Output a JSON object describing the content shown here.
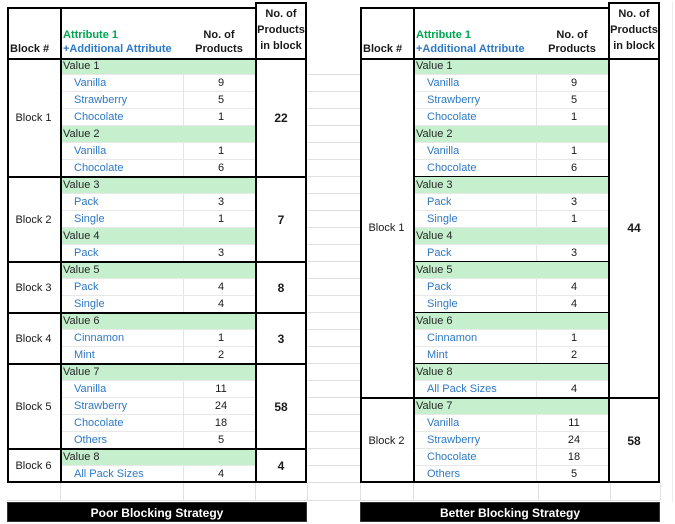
{
  "colors": {
    "green_text": "#00A550",
    "blue_text": "#2E79C4",
    "value_fill": "#C6EFCE",
    "value_text": "#262626",
    "number_text": "#1A1A1A",
    "grid_line": "#E0E0E0",
    "border": "#000000",
    "footer_bg": "#000000",
    "footer_text": "#FFFFFF"
  },
  "header": {
    "block": "Block #",
    "attribute_line1": "Attribute 1",
    "attribute_line2": "+Additional Attribute",
    "products_line1": "No. of",
    "products_line2": "Products",
    "in_block_line1": "No. of",
    "in_block_line2": "Products",
    "in_block_line3": "in block"
  },
  "titles": {
    "left_footer": "Poor Blocking Strategy",
    "right_footer": "Better Blocking Strategy"
  },
  "left_table": {
    "blocks": [
      {
        "label": "Block 1",
        "total": "22",
        "sections": [
          {
            "rows": [
              {
                "t": "value",
                "label": "Value 1"
              },
              {
                "t": "item",
                "label": "Vanilla",
                "count": "9"
              },
              {
                "t": "item",
                "label": "Strawberry",
                "count": "5"
              },
              {
                "t": "item",
                "label": "Chocolate",
                "count": "1"
              },
              {
                "t": "value",
                "label": "Value 2"
              },
              {
                "t": "item",
                "label": "Vanilla",
                "count": "1"
              },
              {
                "t": "item",
                "label": "Chocolate",
                "count": "6"
              }
            ]
          }
        ]
      },
      {
        "label": "Block 2",
        "total": "7",
        "sections": [
          {
            "rows": [
              {
                "t": "value",
                "label": "Value 3"
              },
              {
                "t": "item",
                "label": "Pack",
                "count": "3"
              },
              {
                "t": "item",
                "label": "Single",
                "count": "1"
              },
              {
                "t": "value",
                "label": "Value 4"
              },
              {
                "t": "item",
                "label": "Pack",
                "count": "3"
              }
            ]
          }
        ]
      },
      {
        "label": "Block 3",
        "total": "8",
        "sections": [
          {
            "rows": [
              {
                "t": "value",
                "label": "Value 5"
              },
              {
                "t": "item",
                "label": "Pack",
                "count": "4"
              },
              {
                "t": "item",
                "label": "Single",
                "count": "4"
              }
            ]
          }
        ]
      },
      {
        "label": "Block 4",
        "total": "3",
        "sections": [
          {
            "rows": [
              {
                "t": "value",
                "label": "Value 6"
              },
              {
                "t": "item",
                "label": "Cinnamon",
                "count": "1"
              },
              {
                "t": "item",
                "label": "Mint",
                "count": "2"
              }
            ]
          }
        ]
      },
      {
        "label": "Block 5",
        "total": "58",
        "sections": [
          {
            "rows": [
              {
                "t": "value",
                "label": "Value 7"
              },
              {
                "t": "item",
                "label": "Vanilla",
                "count": "11"
              },
              {
                "t": "item",
                "label": "Strawberry",
                "count": "24"
              },
              {
                "t": "item",
                "label": "Chocolate",
                "count": "18"
              },
              {
                "t": "item",
                "label": "Others",
                "count": "5"
              }
            ]
          }
        ]
      },
      {
        "label": "Block 6",
        "total": "4",
        "sections": [
          {
            "rows": [
              {
                "t": "value",
                "label": "Value 8"
              },
              {
                "t": "item",
                "label": "All Pack Sizes",
                "count": "4"
              }
            ]
          }
        ]
      }
    ]
  },
  "right_table": {
    "blocks": [
      {
        "label": "Block 1",
        "total": "44",
        "sections": [
          {
            "rows": [
              {
                "t": "value",
                "label": "Value 1"
              },
              {
                "t": "item",
                "label": "Vanilla",
                "count": "9"
              },
              {
                "t": "item",
                "label": "Strawberry",
                "count": "5"
              },
              {
                "t": "item",
                "label": "Chocolate",
                "count": "1"
              },
              {
                "t": "value",
                "label": "Value 2"
              },
              {
                "t": "item",
                "label": "Vanilla",
                "count": "1"
              },
              {
                "t": "item",
                "label": "Chocolate",
                "count": "6"
              }
            ]
          },
          {
            "rows": [
              {
                "t": "value",
                "label": "Value 3"
              },
              {
                "t": "item",
                "label": "Pack",
                "count": "3"
              },
              {
                "t": "item",
                "label": "Single",
                "count": "1"
              },
              {
                "t": "value",
                "label": "Value 4"
              },
              {
                "t": "item",
                "label": "Pack",
                "count": "3"
              }
            ]
          },
          {
            "rows": [
              {
                "t": "value",
                "label": "Value 5"
              },
              {
                "t": "item",
                "label": "Pack",
                "count": "4"
              },
              {
                "t": "item",
                "label": "Single",
                "count": "4"
              }
            ]
          },
          {
            "rows": [
              {
                "t": "value",
                "label": "Value 6"
              },
              {
                "t": "item",
                "label": "Cinnamon",
                "count": "1"
              },
              {
                "t": "item",
                "label": "Mint",
                "count": "2"
              }
            ]
          },
          {
            "rows": [
              {
                "t": "value",
                "label": "Value 8"
              },
              {
                "t": "item",
                "label": "All Pack Sizes",
                "count": "4"
              }
            ]
          }
        ]
      },
      {
        "label": "Block 2",
        "total": "58",
        "sections": [
          {
            "rows": [
              {
                "t": "value",
                "label": "Value 7"
              },
              {
                "t": "item",
                "label": "Vanilla",
                "count": "11"
              },
              {
                "t": "item",
                "label": "Strawberry",
                "count": "24"
              },
              {
                "t": "item",
                "label": "Chocolate",
                "count": "18"
              },
              {
                "t": "item",
                "label": "Others",
                "count": "5"
              }
            ]
          }
        ]
      }
    ]
  }
}
